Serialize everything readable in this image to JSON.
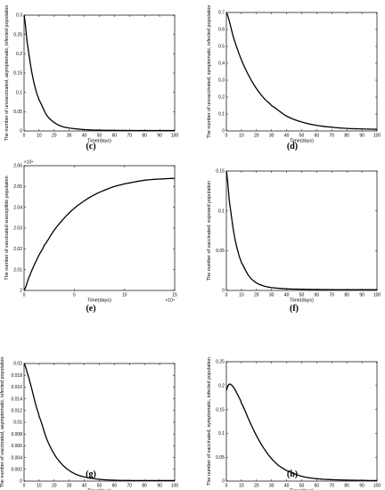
{
  "chart_data": [
    {
      "panel": "(c)",
      "type": "line",
      "xlabel": "Time(days)",
      "ylabel": "The number of unvaccinated, asymptomatic, infected population",
      "xlim": [
        0,
        100
      ],
      "ylim": [
        0,
        0.3
      ],
      "xticks": [
        "0",
        "10",
        "20",
        "30",
        "40",
        "50",
        "60",
        "70",
        "80",
        "90",
        "100"
      ],
      "yticks": [
        "0",
        "0.05",
        "0.1",
        "0.15",
        "0.2",
        "0.25",
        "0.3"
      ],
      "series": [
        {
          "x": [
            0,
            2,
            5,
            8,
            10,
            15,
            20,
            25,
            30,
            40,
            50,
            60,
            70,
            80,
            90,
            100
          ],
          "y": [
            0.3,
            0.231,
            0.155,
            0.104,
            0.08,
            0.041,
            0.022,
            0.012,
            0.0075,
            0.0035,
            0.002,
            0.0015,
            0.0012,
            0.001,
            0.001,
            0.001
          ]
        }
      ]
    },
    {
      "panel": "(d)",
      "type": "line",
      "xlabel": "Time(days)",
      "ylabel": "The number of unvaccinated, symptomatic, infected population",
      "xlim": [
        0,
        100
      ],
      "ylim": [
        0,
        0.7
      ],
      "xticks": [
        "0",
        "10",
        "20",
        "30",
        "40",
        "50",
        "60",
        "70",
        "80",
        "90",
        "100"
      ],
      "yticks": [
        "0",
        "0.1",
        "0.2",
        "0.3",
        "0.4",
        "0.5",
        "0.6",
        "0.7"
      ],
      "series": [
        {
          "x": [
            0,
            5,
            10,
            15,
            20,
            25,
            30,
            40,
            50,
            60,
            70,
            80,
            90,
            100
          ],
          "y": [
            0.7,
            0.545,
            0.42,
            0.325,
            0.25,
            0.193,
            0.15,
            0.088,
            0.053,
            0.033,
            0.022,
            0.015,
            0.012,
            0.01
          ]
        }
      ]
    },
    {
      "panel": "(e)",
      "type": "line",
      "xlabel": "Time(days)",
      "ylabel": "The number of vaccinated susceptible population",
      "xlim": [
        0,
        15
      ],
      "ylim": [
        2,
        2.06
      ],
      "x_multiplier": "×10⁴",
      "y_multiplier": "×10⁴",
      "xticks": [
        "0",
        "5",
        "10",
        "15"
      ],
      "yticks": [
        "2",
        "2.01",
        "2.02",
        "2.03",
        "2.04",
        "2.05",
        "2.06"
      ],
      "series": [
        {
          "x": [
            0,
            0.5,
            1,
            1.5,
            2,
            3,
            4,
            5,
            6,
            7,
            8,
            9,
            10,
            12,
            14,
            15
          ],
          "y": [
            2.0,
            2.0064,
            2.0121,
            2.0171,
            2.0216,
            2.029,
            2.0348,
            2.0395,
            2.0431,
            2.046,
            2.0482,
            2.05,
            2.0513,
            2.053,
            2.0537,
            2.0539
          ]
        }
      ]
    },
    {
      "panel": "(f)",
      "type": "line",
      "xlabel": "Time(days)",
      "ylabel": "The number of vaccinated, exposed population",
      "xlim": [
        0,
        100
      ],
      "ylim": [
        0,
        0.15
      ],
      "xticks": [
        "0",
        "10",
        "20",
        "30",
        "40",
        "50",
        "60",
        "70",
        "80",
        "90",
        "100"
      ],
      "yticks": [
        "0",
        "0.05",
        "0.1",
        "0.15"
      ],
      "series": [
        {
          "x": [
            0,
            2,
            5,
            8,
            10,
            15,
            20,
            25,
            30,
            40,
            50,
            60,
            70,
            80,
            90,
            100
          ],
          "y": [
            0.15,
            0.112,
            0.072,
            0.047,
            0.035,
            0.018,
            0.0095,
            0.0055,
            0.0035,
            0.002,
            0.0015,
            0.0012,
            0.001,
            0.001,
            0.001,
            0.001
          ]
        }
      ]
    },
    {
      "panel": "(g)",
      "type": "line",
      "xlabel": "Time(days)",
      "ylabel": "The number of vaccinated, asymptomatic, infected population",
      "xlim": [
        0,
        100
      ],
      "ylim": [
        0,
        0.02
      ],
      "xticks": [
        "0",
        "10",
        "20",
        "30",
        "40",
        "50",
        "60",
        "70",
        "80",
        "90",
        "100"
      ],
      "yticks": [
        "0",
        "0.002",
        "0.004",
        "0.006",
        "0.008",
        "0.01",
        "0.012",
        "0.014",
        "0.016",
        "0.018",
        "0.02"
      ],
      "series": [
        {
          "x": [
            0,
            2,
            5,
            8,
            10,
            15,
            20,
            25,
            30,
            35,
            40,
            50,
            60,
            70,
            80,
            90,
            100
          ],
          "y": [
            0.02,
            0.0185,
            0.0158,
            0.0128,
            0.011,
            0.0072,
            0.0046,
            0.0029,
            0.0018,
            0.0011,
            0.0007,
            0.0003,
            0.00015,
            0.0001,
            0.0001,
            0.0001,
            0.0001
          ]
        }
      ]
    },
    {
      "panel": "(h)",
      "type": "line",
      "xlabel": "Time(days)",
      "ylabel": "The number of vaccinated, symptomatic, infected population",
      "xlim": [
        0,
        100
      ],
      "ylim": [
        0,
        0.25
      ],
      "xticks": [
        "0",
        "10",
        "20",
        "30",
        "40",
        "50",
        "60",
        "70",
        "80",
        "90",
        "100"
      ],
      "yticks": [
        "0",
        "0.05",
        "0.1",
        "0.15",
        "0.2",
        "0.25"
      ],
      "series": [
        {
          "x": [
            0,
            1,
            2,
            3,
            5,
            8,
            10,
            15,
            20,
            25,
            30,
            35,
            40,
            50,
            60,
            70,
            80,
            90,
            100
          ],
          "y": [
            0.19,
            0.199,
            0.203,
            0.202,
            0.195,
            0.178,
            0.163,
            0.128,
            0.095,
            0.068,
            0.047,
            0.032,
            0.022,
            0.01,
            0.005,
            0.003,
            0.002,
            0.0015,
            0.001
          ]
        }
      ]
    }
  ]
}
